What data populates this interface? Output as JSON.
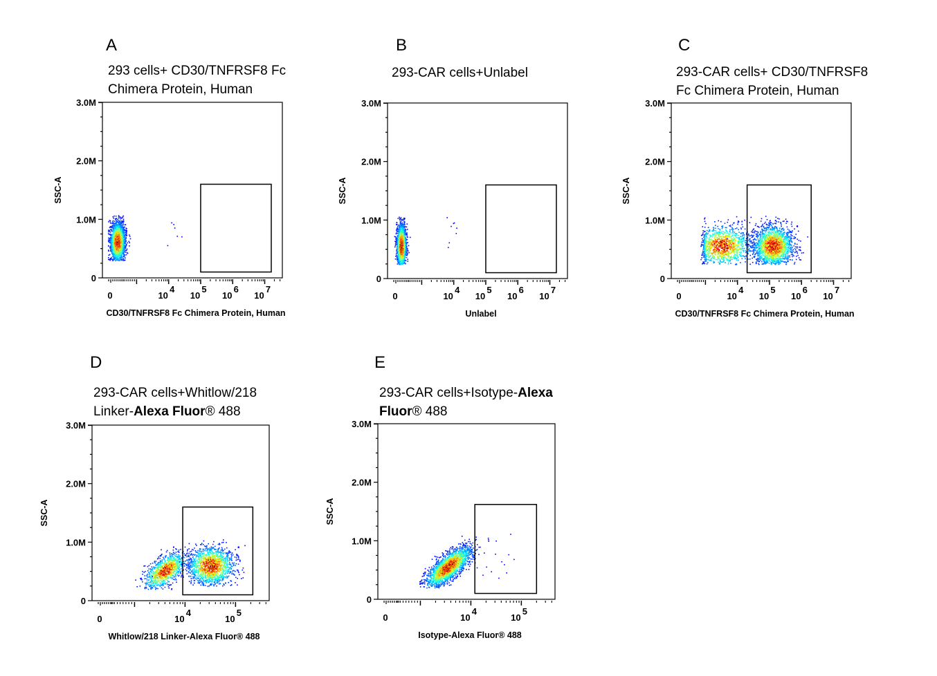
{
  "chart_data": [
    {
      "type": "scatter",
      "panel": "A",
      "title_lines": [
        [
          "293  cells+  CD30/TNFRSF8  Fc"
        ],
        [
          "Chimera Protein, Human"
        ]
      ],
      "title_rich": [
        [
          {
            "t": "293  cells+  CD30/TNFRSF8  Fc",
            "b": false
          }
        ],
        [
          {
            "t": "Chimera Protein, Human",
            "b": false
          }
        ]
      ],
      "xlabel": "CD30/TNFRSF8 Fc Chimera Protein, Human",
      "ylabel": "SSC-A",
      "x_scale": "biexponential",
      "x_ticks": [
        {
          "label": "0",
          "exp": ""
        },
        {
          "label": "10",
          "exp": "4"
        },
        {
          "label": "10",
          "exp": "5"
        },
        {
          "label": "10",
          "exp": "6"
        },
        {
          "label": "10",
          "exp": "7"
        }
      ],
      "x_decades_max": 7,
      "y_ticks": [
        "0",
        "1.0M",
        "2.0M",
        "3.0M"
      ],
      "ylim": [
        0,
        3000000
      ],
      "gate": {
        "x_range": [
          100000,
          20000000
        ],
        "y_range": [
          100000,
          1600000
        ]
      },
      "populations": [
        {
          "x_center_log": 0.0,
          "x_spread": 0.55,
          "y_center": 620000,
          "y_spread": 170000,
          "n": 2200,
          "clamp_left": true,
          "y_min": 300000,
          "y_max": 1080000
        }
      ],
      "outliers": [
        [
          12000,
          950000
        ],
        [
          15000,
          860000
        ],
        [
          18000,
          720000
        ],
        [
          25000,
          710000
        ],
        [
          9000,
          560000
        ],
        [
          14000,
          920000
        ]
      ]
    },
    {
      "type": "scatter",
      "panel": "B",
      "title_rich": [
        [
          {
            "t": "293-CAR cells+Unlabel",
            "b": false
          }
        ]
      ],
      "xlabel": "Unlabel",
      "ylabel": "SSC-A",
      "x_scale": "biexponential",
      "x_ticks": [
        {
          "label": "0",
          "exp": ""
        },
        {
          "label": "10",
          "exp": "4"
        },
        {
          "label": "10",
          "exp": "5"
        },
        {
          "label": "10",
          "exp": "6"
        },
        {
          "label": "10",
          "exp": "7"
        }
      ],
      "x_decades_max": 7,
      "y_ticks": [
        "0",
        "1.0M",
        "2.0M",
        "3.0M"
      ],
      "ylim": [
        0,
        3000000
      ],
      "gate": {
        "x_range": [
          100000,
          20000000
        ],
        "y_range": [
          100000,
          1600000
        ]
      },
      "populations": [
        {
          "x_center_log": -0.2,
          "x_spread": 0.35,
          "y_center": 560000,
          "y_spread": 190000,
          "n": 1800,
          "clamp_left": true,
          "y_min": 250000,
          "y_max": 1080000
        }
      ],
      "outliers": [
        [
          6000,
          1050000
        ],
        [
          8000,
          900000
        ],
        [
          10000,
          960000
        ],
        [
          12000,
          870000
        ],
        [
          11500,
          780000
        ],
        [
          7000,
          620000
        ],
        [
          6500,
          540000
        ],
        [
          9500,
          950000
        ]
      ]
    },
    {
      "type": "scatter",
      "panel": "C",
      "title_rich": [
        [
          {
            "t": "293-CAR cells+  CD30/TNFRSF8",
            "b": false
          }
        ],
        [
          {
            "t": "Fc Chimera Protein, Human",
            "b": false
          }
        ]
      ],
      "xlabel": "CD30/TNFRSF8 Fc Chimera Protein, Human",
      "ylabel": "SSC-A",
      "x_scale": "biexponential",
      "x_ticks": [
        {
          "label": "0",
          "exp": ""
        },
        {
          "label": "10",
          "exp": "4"
        },
        {
          "label": "10",
          "exp": "5"
        },
        {
          "label": "10",
          "exp": "6"
        },
        {
          "label": "10",
          "exp": "7"
        }
      ],
      "x_decades_max": 7,
      "y_ticks": [
        "0",
        "1.0M",
        "2.0M",
        "3.0M"
      ],
      "ylim": [
        0,
        3000000
      ],
      "gate": {
        "x_range": [
          20000,
          2000000
        ],
        "y_range": [
          100000,
          1600000
        ]
      },
      "populations": [
        {
          "x_center_log": 3.5,
          "x_spread": 0.45,
          "y_center": 560000,
          "y_spread": 170000,
          "n": 1300,
          "clamp_left": true,
          "y_min": 250000,
          "y_max": 1080000,
          "x_min_log": 2.2
        },
        {
          "x_center_log": 5.1,
          "x_spread": 0.3,
          "y_center": 560000,
          "y_spread": 170000,
          "n": 2000,
          "y_min": 250000,
          "y_max": 1080000
        }
      ],
      "outliers": [
        [
          600000,
          700000
        ],
        [
          700000,
          550000
        ],
        [
          800000,
          500000
        ],
        [
          900000,
          650000
        ],
        [
          1500000,
          720000
        ],
        [
          1100000,
          450000
        ]
      ]
    },
    {
      "type": "scatter",
      "panel": "D",
      "title_rich": [
        [
          {
            "t": "293-CAR  cells+Whitlow/218",
            "b": false
          }
        ],
        [
          {
            "t": "Linker-",
            "b": false
          },
          {
            "t": "Alexa Fluor",
            "b": true
          },
          {
            "t": "® 488",
            "b": false
          }
        ]
      ],
      "xlabel": "Whitlow/218 Linker-Alexa Fluor® 488",
      "ylabel": "SSC-A",
      "x_scale": "biexponential",
      "x_ticks": [
        {
          "label": "0",
          "exp": ""
        },
        {
          "label": "10",
          "exp": "4"
        },
        {
          "label": "10",
          "exp": "5"
        }
      ],
      "x_decades_max": 5.5,
      "y_ticks": [
        "0",
        "1.0M",
        "2.0M",
        "3.0M"
      ],
      "ylim": [
        0,
        3000000
      ],
      "gate": {
        "x_range": [
          9000,
          220000
        ],
        "y_range": [
          100000,
          1600000
        ]
      },
      "populations": [
        {
          "x_center_log": 3.6,
          "x_spread": 0.2,
          "y_center": 520000,
          "y_spread": 150000,
          "n": 1100,
          "corr": 0.6,
          "y_min": 200000,
          "y_max": 1100000
        },
        {
          "x_center_log": 4.5,
          "x_spread": 0.22,
          "y_center": 600000,
          "y_spread": 160000,
          "n": 1600,
          "y_min": 250000,
          "y_max": 1100000
        }
      ],
      "outliers": [
        [
          1500,
          600000
        ],
        [
          150000,
          950000
        ],
        [
          120000,
          700000
        ],
        [
          2200,
          420000
        ]
      ]
    },
    {
      "type": "scatter",
      "panel": "E",
      "title_rich": [
        [
          {
            "t": "293-CAR cells+Isotype-",
            "b": false
          },
          {
            "t": "Alexa",
            "b": true
          }
        ],
        [
          {
            "t": "Fluor",
            "b": true
          },
          {
            "t": "® 488",
            "b": false
          }
        ]
      ],
      "xlabel": "Isotype-Alexa Fluor® 488",
      "ylabel": "SSC-A",
      "x_scale": "biexponential",
      "x_ticks": [
        {
          "label": "0",
          "exp": ""
        },
        {
          "label": "10",
          "exp": "4"
        },
        {
          "label": "10",
          "exp": "5"
        }
      ],
      "x_decades_max": 5.5,
      "y_ticks": [
        "0",
        "1.0M",
        "2.0M",
        "3.0M"
      ],
      "ylim": [
        0,
        3000000
      ],
      "gate": {
        "x_range": [
          12000,
          200000
        ],
        "y_range": [
          100000,
          1620000
        ]
      },
      "populations": [
        {
          "x_center_log": 3.55,
          "x_spread": 0.22,
          "y_center": 560000,
          "y_spread": 170000,
          "n": 2200,
          "corr": 0.75,
          "y_min": 200000,
          "y_max": 1100000
        }
      ],
      "outliers": [
        [
          15000,
          900000
        ],
        [
          18000,
          800000
        ],
        [
          22000,
          1000000
        ],
        [
          30000,
          780000
        ],
        [
          40000,
          650000
        ],
        [
          60000,
          1120000
        ],
        [
          55000,
          770000
        ],
        [
          70000,
          690000
        ],
        [
          45000,
          600000
        ],
        [
          25000,
          480000
        ],
        [
          35000,
          370000
        ],
        [
          50000,
          460000
        ],
        [
          20000,
          560000
        ],
        [
          17000,
          420000
        ]
      ]
    }
  ]
}
